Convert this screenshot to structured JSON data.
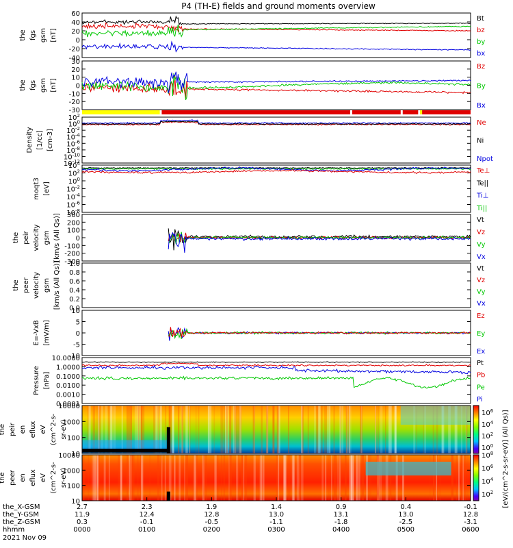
{
  "chart_data": {
    "type": "line",
    "title": "P4 (TH-E) fields and ground moments overview",
    "date_label": "2021 Nov 09",
    "bottom_rows": [
      {
        "name": "the_X-GSM",
        "values": [
          "2.7",
          "2.3",
          "1.9",
          "1.4",
          "0.9",
          "0.4",
          "-0.1"
        ]
      },
      {
        "name": "the_Y-GSM",
        "values": [
          "11.9",
          "12.4",
          "12.8",
          "13.0",
          "13.1",
          "13.0",
          "12.8"
        ]
      },
      {
        "name": "the_Z-GSM",
        "values": [
          "0.3",
          "-0.1",
          "-0.5",
          "-1.1",
          "-1.8",
          "-2.5",
          "-3.1"
        ]
      },
      {
        "name": "hhmm",
        "values": [
          "0000",
          "0100",
          "0200",
          "0300",
          "0400",
          "0500",
          "0600"
        ]
      }
    ],
    "colorbar": {
      "label": "[eV/(cm^2-s-sr-eV)] (All Qs)]",
      "ion_ticks": [
        "10^6",
        "10^4",
        "10^2",
        "10^0"
      ],
      "elec_ticks": [
        "10^8",
        "10^6",
        "10^4",
        "10^2"
      ]
    },
    "panels": [
      {
        "key": "fgs_gsm",
        "ylabel": [
          "the",
          "fgs",
          "gsm",
          "[nT]"
        ],
        "yticks": [
          "60",
          "40",
          "20",
          "0",
          "-20",
          "-40"
        ],
        "legend": [
          {
            "text": "Bt",
            "color": "#000000"
          },
          {
            "text": "bz",
            "color": "#e00000"
          },
          {
            "text": "by",
            "color": "#00c800"
          },
          {
            "text": "bx",
            "color": "#0000e0"
          }
        ]
      },
      {
        "key": "fgs_gsm_dlp",
        "ylabel": [
          "the",
          "fgs",
          "gsm",
          "[nT]"
        ],
        "yticks": [
          "30",
          "20",
          "10",
          "0",
          "-10",
          "-20",
          "-30"
        ],
        "legend": [
          {
            "text": "Bz",
            "color": "#e00000"
          },
          {
            "text": "By",
            "color": "#00c800"
          },
          {
            "text": "Bx",
            "color": "#0000e0"
          }
        ]
      },
      {
        "key": "density",
        "ylabel": [
          "Density",
          "[1/cc]",
          "[cm-3]"
        ],
        "yticks": [
          "10^2",
          "10^0",
          "10^-2",
          "10^-4",
          "10^-6",
          "10^-8",
          "10^-10",
          "10^-12"
        ],
        "legend": [
          {
            "text": "Ne",
            "color": "#e00000"
          },
          {
            "text": "Ni",
            "color": "#000000"
          },
          {
            "text": "Npot",
            "color": "#0000e0"
          }
        ]
      },
      {
        "key": "temperature",
        "ylabel": [
          "moqt3",
          "[eV]"
        ],
        "yticks": [
          "10^4",
          "10^2",
          "10^0",
          "10^-2",
          "10^-4",
          "10^-6",
          "10^-8"
        ],
        "legend": [
          {
            "text": "Te⊥",
            "color": "#e00000"
          },
          {
            "text": "Te||",
            "color": "#000000"
          },
          {
            "text": "Ti⊥",
            "color": "#0000e0"
          },
          {
            "text": "Ti||",
            "color": "#00c800"
          }
        ]
      },
      {
        "key": "peir_velocity",
        "ylabel": [
          "the",
          "peir",
          "velocity",
          "gsm",
          "[km/s (All Qs)]"
        ],
        "yticks": [
          "300",
          "200",
          "100",
          "0",
          "-100",
          "-200",
          "-300"
        ],
        "legend": [
          {
            "text": "Vt",
            "color": "#000000"
          },
          {
            "text": "Vz",
            "color": "#e00000"
          },
          {
            "text": "Vy",
            "color": "#00c800"
          },
          {
            "text": "Vx",
            "color": "#0000e0"
          }
        ]
      },
      {
        "key": "peer_velocity",
        "ylabel": [
          "the",
          "peer",
          "velocity",
          "gsm",
          "[km/s (All Qs)]"
        ],
        "yticks": [
          "1.0",
          "0.8",
          "0.6",
          "0.4",
          "0.2",
          "0.0"
        ],
        "legend": [
          {
            "text": "Vt",
            "color": "#000000"
          },
          {
            "text": "Vz",
            "color": "#e00000"
          },
          {
            "text": "Vy",
            "color": "#00c800"
          },
          {
            "text": "Vx",
            "color": "#0000e0"
          }
        ]
      },
      {
        "key": "efield",
        "ylabel": [
          "E=-VxB",
          "[mV/m]"
        ],
        "yticks": [
          "10",
          "5",
          "0",
          "-5",
          "-10"
        ],
        "legend": [
          {
            "text": "Ez",
            "color": "#e00000"
          },
          {
            "text": "Ey",
            "color": "#00c800"
          },
          {
            "text": "Ex",
            "color": "#0000e0"
          }
        ]
      },
      {
        "key": "pressure",
        "ylabel": [
          "Pressure",
          "[nPa]"
        ],
        "yticks": [
          "10.0000",
          "1.0000",
          "0.1000",
          "0.0100",
          "0.0010",
          "0.0001"
        ],
        "legend": [
          {
            "text": "Pt",
            "color": "#000000"
          },
          {
            "text": "Pb",
            "color": "#e00000"
          },
          {
            "text": "Pe",
            "color": "#00c800"
          },
          {
            "text": "Pi",
            "color": "#0000e0"
          }
        ]
      },
      {
        "key": "peir_spec",
        "ylabel": [
          "the",
          "peir",
          "en",
          "eflux",
          "eV",
          "(cm^2-s-",
          "sr-eV)"
        ],
        "yticks": [
          "10000",
          "1000",
          "100",
          "10"
        ],
        "legend": []
      },
      {
        "key": "peer_spec",
        "ylabel": [
          "the",
          "peer",
          "en",
          "eflux",
          "eV",
          "(cm^2-s-",
          "sr-eV)"
        ],
        "yticks": [
          "10000",
          "1000",
          "100",
          "10"
        ],
        "legend": []
      }
    ]
  }
}
